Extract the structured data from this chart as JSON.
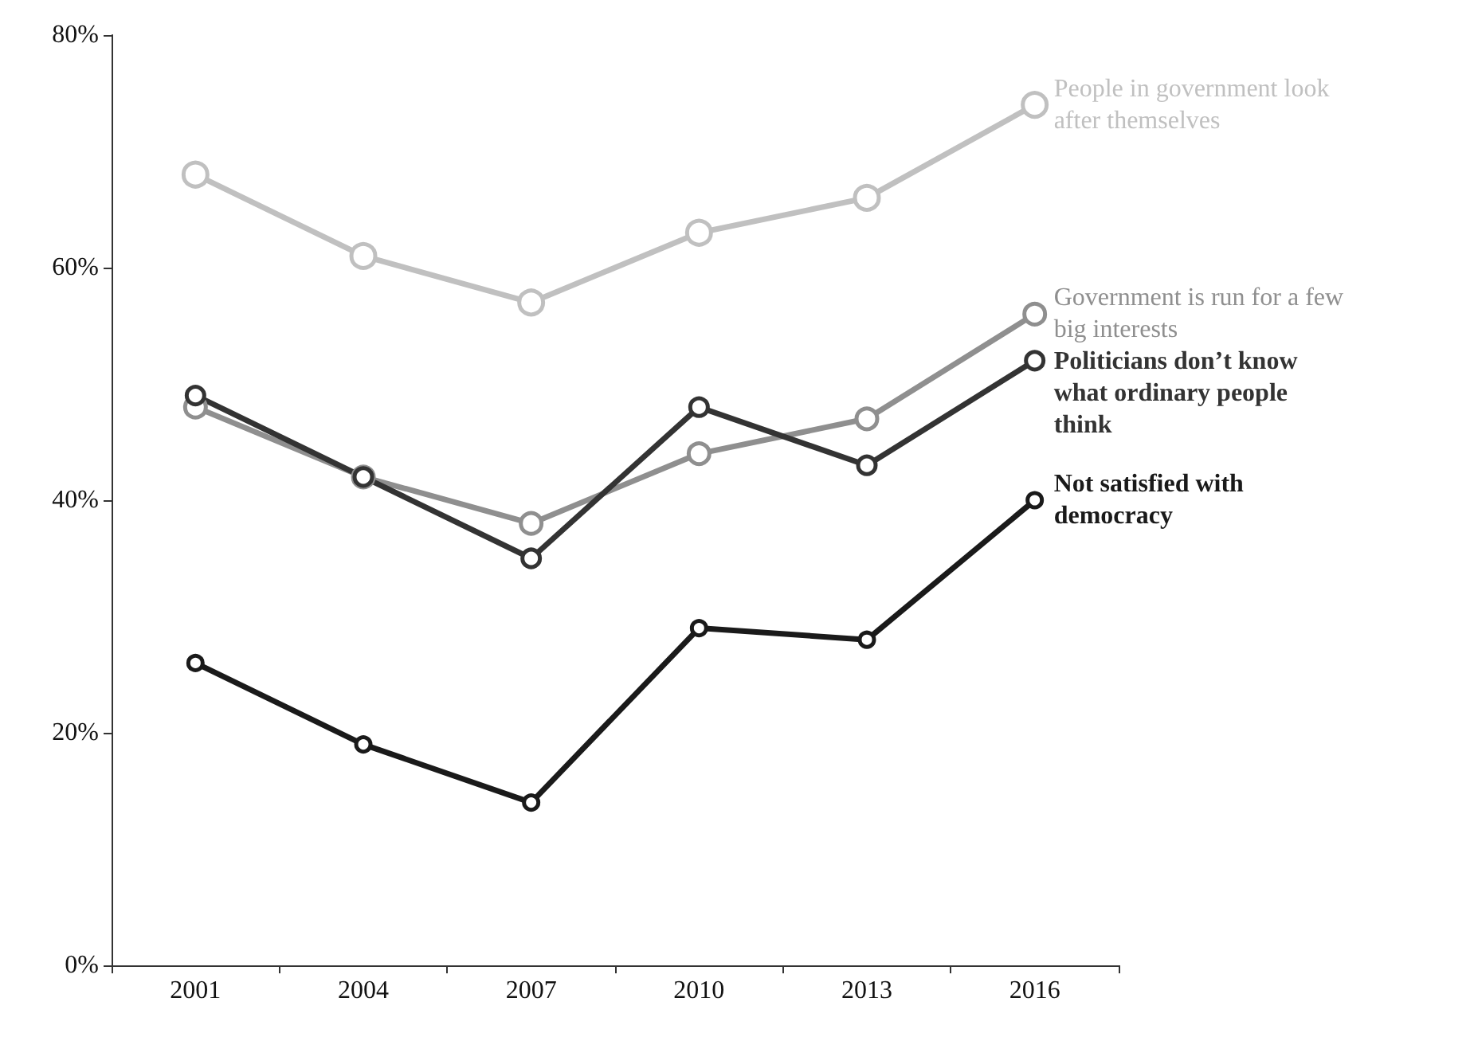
{
  "chart_data": {
    "type": "line",
    "categories": [
      "2001",
      "2004",
      "2007",
      "2010",
      "2013",
      "2016"
    ],
    "series": [
      {
        "name": "People in government look after themselves",
        "color": "#c0c0c0",
        "values": [
          68,
          61,
          57,
          63,
          66,
          74
        ]
      },
      {
        "name": "Government is run for a few big interests",
        "color": "#8f8f8f",
        "values": [
          48,
          42,
          38,
          44,
          47,
          56
        ]
      },
      {
        "name": "Politicians don’t know what ordinary people think",
        "color": "#333333",
        "values": [
          49,
          42,
          35,
          48,
          43,
          52
        ]
      },
      {
        "name": "Not satisfied with democracy",
        "color": "#1a1a1a",
        "values": [
          26,
          19,
          14,
          29,
          28,
          40
        ]
      }
    ],
    "ylim": [
      0,
      80
    ],
    "yticks": [
      {
        "value": 0,
        "label": "0%"
      },
      {
        "value": 20,
        "label": "20%"
      },
      {
        "value": 40,
        "label": "40%"
      },
      {
        "value": 60,
        "label": "60%"
      },
      {
        "value": 80,
        "label": "80%"
      }
    ],
    "grid": false,
    "legend": false,
    "marker": "circle",
    "line_style": "solid"
  }
}
